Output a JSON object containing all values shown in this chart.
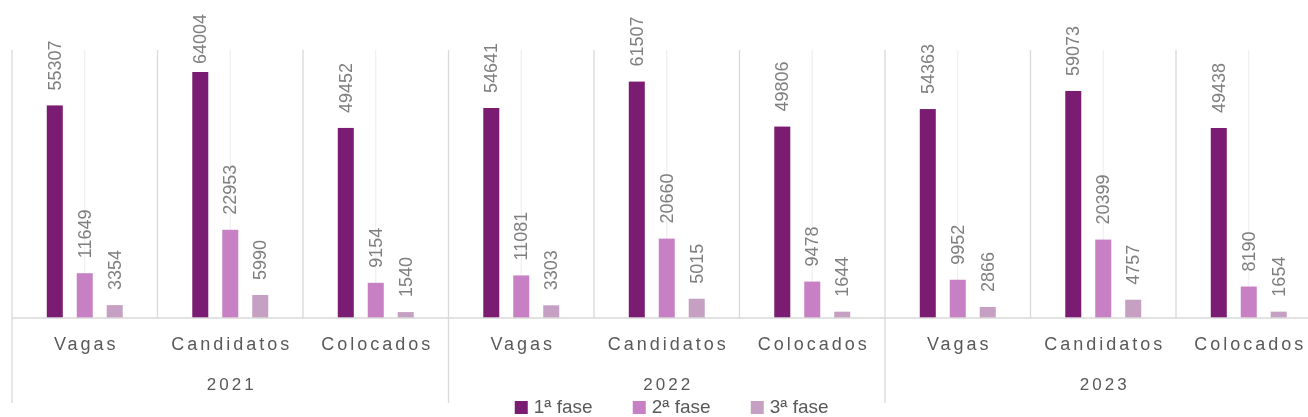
{
  "chart_data": {
    "type": "bar",
    "categories": [
      "Vagas",
      "Candidatos",
      "Colocados",
      "Vagas",
      "Candidatos",
      "Colocados",
      "Vagas",
      "Candidatos",
      "Colocados"
    ],
    "series": [
      {
        "name": "1ª fase",
        "color": "#7a1c71",
        "values": [
          55307,
          64004,
          49452,
          54641,
          61507,
          49806,
          54363,
          59073,
          49438
        ]
      },
      {
        "name": "2ª fase",
        "color": "#c680c3",
        "values": [
          11649,
          22953,
          9154,
          11081,
          20660,
          9478,
          9952,
          20399,
          8190
        ]
      },
      {
        "name": "3ª fase",
        "color": "#c5a0c3",
        "values": [
          3354,
          5990,
          1540,
          3303,
          5015,
          1644,
          2866,
          4757,
          1654
        ]
      }
    ],
    "annotations": [
      "2021",
      "2022",
      "2023"
    ],
    "data_labels": true,
    "grid": "x",
    "legend": "bottom"
  }
}
